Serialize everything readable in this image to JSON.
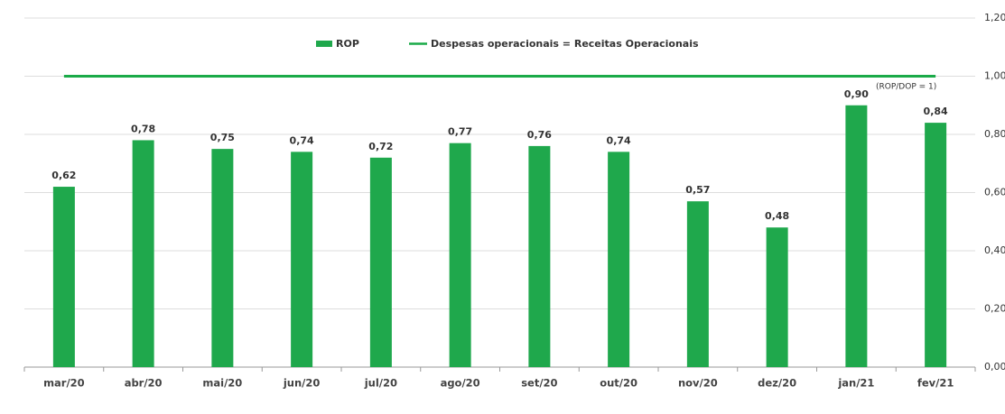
{
  "chart_data": {
    "type": "bar",
    "categories": [
      "mar/20",
      "abr/20",
      "mai/20",
      "jun/20",
      "jul/20",
      "ago/20",
      "set/20",
      "out/20",
      "nov/20",
      "dez/20",
      "jan/21",
      "fev/21"
    ],
    "series": [
      {
        "name": "ROP",
        "type": "bar",
        "color": "#1fa84c",
        "values": [
          0.62,
          0.78,
          0.75,
          0.74,
          0.72,
          0.77,
          0.76,
          0.74,
          0.57,
          0.48,
          0.9,
          0.84
        ],
        "value_labels": [
          "0,62",
          "0,78",
          "0,75",
          "0,74",
          "0,72",
          "0,77",
          "0,76",
          "0,74",
          "0,57",
          "0,48",
          "0,90",
          "0,84"
        ]
      },
      {
        "name": "Despesas operacionais = Receitas Operacionais",
        "type": "line",
        "color": "#1aaa48",
        "values": [
          1,
          1,
          1,
          1,
          1,
          1,
          1,
          1,
          1,
          1,
          1,
          1
        ]
      }
    ],
    "annotations": [
      "(ROP/DOP = 1)"
    ],
    "ylim": [
      0,
      1.2
    ],
    "yticks": [
      {
        "value": 0,
        "label": "0,00"
      },
      {
        "value": 0.2,
        "label": "0,20"
      },
      {
        "value": 0.4,
        "label": "0,40"
      },
      {
        "value": 0.6,
        "label": "0,60"
      },
      {
        "value": 0.8,
        "label": "0,80"
      },
      {
        "value": 1,
        "label": "1,00"
      },
      {
        "value": 1.2,
        "label": "1,20"
      }
    ],
    "grid": true,
    "legend": "top"
  }
}
